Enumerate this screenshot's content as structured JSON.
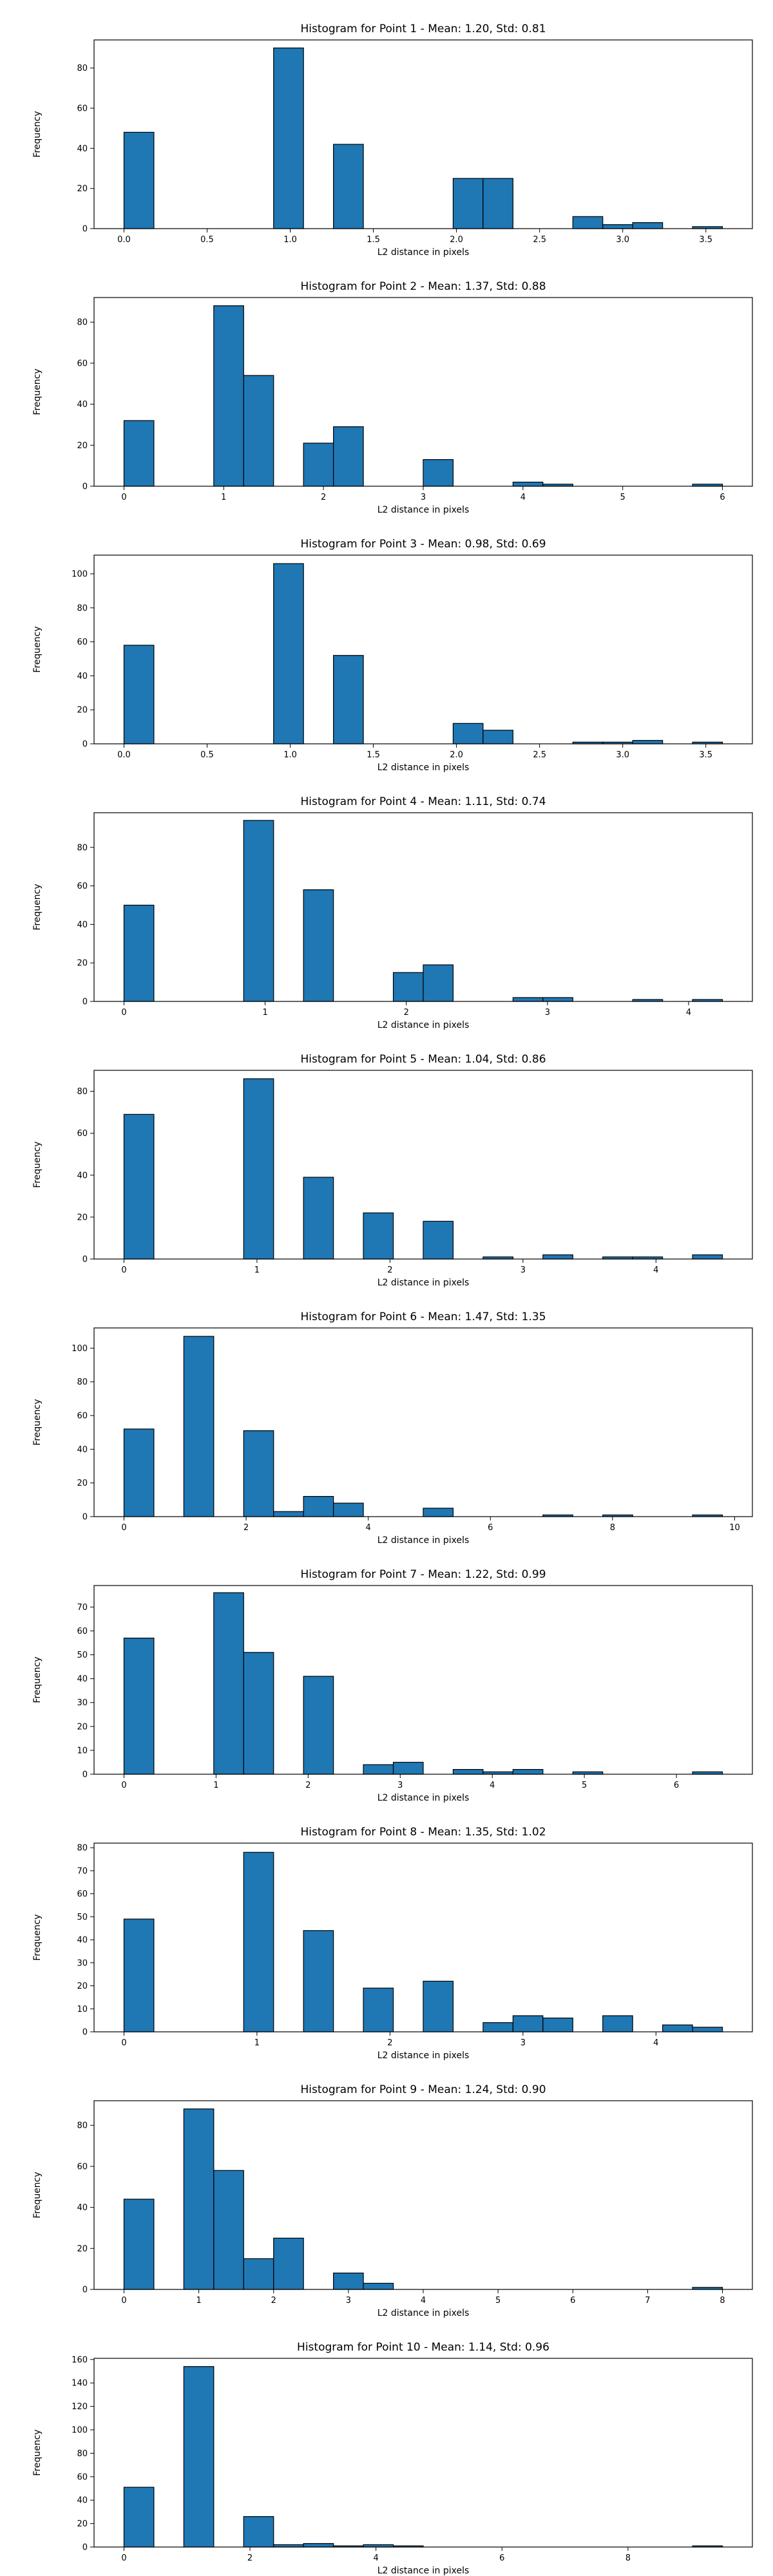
{
  "chart_data": [
    {
      "type": "bar",
      "title": "Histogram for Point 1 - Mean: 1.20, Std: 0.81",
      "xlabel": "L2 distance in pixels",
      "ylabel": "Frequency",
      "xlim": [
        -0.18,
        3.78
      ],
      "ylim": [
        0,
        94
      ],
      "xticks": [
        0.0,
        0.5,
        1.0,
        1.5,
        2.0,
        2.5,
        3.0,
        3.5
      ],
      "xtick_labels": [
        "0.0",
        "0.5",
        "1.0",
        "1.5",
        "2.0",
        "2.5",
        "3.0",
        "3.5"
      ],
      "yticks": [
        0,
        20,
        40,
        60,
        80
      ],
      "bin_edges": [
        0.0,
        0.18,
        0.36,
        0.54,
        0.72,
        0.9,
        1.08,
        1.26,
        1.44,
        1.62,
        1.8,
        1.98,
        2.16,
        2.34,
        2.52,
        2.7,
        2.88,
        3.06,
        3.24,
        3.42,
        3.6
      ],
      "values": [
        48,
        0,
        0,
        0,
        0,
        90,
        0,
        42,
        0,
        0,
        0,
        25,
        25,
        0,
        0,
        6,
        2,
        3,
        0,
        1
      ]
    },
    {
      "type": "bar",
      "title": "Histogram for Point 2 - Mean: 1.37, Std: 0.88",
      "xlabel": "L2 distance in pixels",
      "ylabel": "Frequency",
      "xlim": [
        -0.3,
        6.3
      ],
      "ylim": [
        0,
        92
      ],
      "xticks": [
        0,
        1,
        2,
        3,
        4,
        5,
        6
      ],
      "xtick_labels": [
        "0",
        "1",
        "2",
        "3",
        "4",
        "5",
        "6"
      ],
      "yticks": [
        0,
        20,
        40,
        60,
        80
      ],
      "bin_edges": [
        0.0,
        0.3,
        0.6,
        0.9,
        1.2,
        1.5,
        1.8,
        2.1,
        2.4,
        2.7,
        3.0,
        3.3,
        3.6,
        3.9,
        4.2,
        4.5,
        4.8,
        5.1,
        5.4,
        5.7,
        6.0
      ],
      "values": [
        32,
        0,
        0,
        88,
        54,
        0,
        21,
        29,
        0,
        0,
        13,
        0,
        0,
        2,
        1,
        0,
        0,
        0,
        0,
        1
      ]
    },
    {
      "type": "bar",
      "title": "Histogram for Point 3 - Mean: 0.98, Std: 0.69",
      "xlabel": "L2 distance in pixels",
      "ylabel": "Frequency",
      "xlim": [
        -0.18,
        3.78
      ],
      "ylim": [
        0,
        111
      ],
      "xticks": [
        0.0,
        0.5,
        1.0,
        1.5,
        2.0,
        2.5,
        3.0,
        3.5
      ],
      "xtick_labels": [
        "0.0",
        "0.5",
        "1.0",
        "1.5",
        "2.0",
        "2.5",
        "3.0",
        "3.5"
      ],
      "yticks": [
        0,
        20,
        40,
        60,
        80,
        100
      ],
      "bin_edges": [
        0.0,
        0.18,
        0.36,
        0.54,
        0.72,
        0.9,
        1.08,
        1.26,
        1.44,
        1.62,
        1.8,
        1.98,
        2.16,
        2.34,
        2.52,
        2.7,
        2.88,
        3.06,
        3.24,
        3.42,
        3.6
      ],
      "values": [
        58,
        0,
        0,
        0,
        0,
        106,
        0,
        52,
        0,
        0,
        0,
        12,
        8,
        0,
        0,
        1,
        1,
        2,
        0,
        1
      ]
    },
    {
      "type": "bar",
      "title": "Histogram for Point 4 - Mean: 1.11, Std: 0.74",
      "xlabel": "L2 distance in pixels",
      "ylabel": "Frequency",
      "xlim": [
        -0.212,
        4.452
      ],
      "ylim": [
        0,
        98
      ],
      "xticks": [
        0,
        1,
        2,
        3,
        4
      ],
      "xtick_labels": [
        "0",
        "1",
        "2",
        "3",
        "4"
      ],
      "yticks": [
        0,
        20,
        40,
        60,
        80
      ],
      "bin_edges": [
        0.0,
        0.212,
        0.424,
        0.636,
        0.848,
        1.06,
        1.272,
        1.484,
        1.696,
        1.908,
        2.12,
        2.332,
        2.544,
        2.756,
        2.968,
        3.18,
        3.392,
        3.604,
        3.816,
        4.028,
        4.24
      ],
      "values": [
        50,
        0,
        0,
        0,
        94,
        0,
        58,
        0,
        0,
        15,
        19,
        0,
        0,
        2,
        2,
        0,
        0,
        1,
        0,
        1
      ]
    },
    {
      "type": "bar",
      "title": "Histogram for Point 5 - Mean: 1.04, Std: 0.86",
      "xlabel": "L2 distance in pixels",
      "ylabel": "Frequency",
      "xlim": [
        -0.225,
        4.725
      ],
      "ylim": [
        0,
        90
      ],
      "xticks": [
        0,
        1,
        2,
        3,
        4
      ],
      "xtick_labels": [
        "0",
        "1",
        "2",
        "3",
        "4"
      ],
      "yticks": [
        0,
        20,
        40,
        60,
        80
      ],
      "bin_edges": [
        0.0,
        0.225,
        0.45,
        0.675,
        0.9,
        1.125,
        1.35,
        1.575,
        1.8,
        2.025,
        2.25,
        2.475,
        2.7,
        2.925,
        3.15,
        3.375,
        3.6,
        3.825,
        4.05,
        4.275,
        4.5
      ],
      "values": [
        69,
        0,
        0,
        0,
        86,
        0,
        39,
        0,
        22,
        0,
        18,
        0,
        1,
        0,
        2,
        0,
        1,
        1,
        0,
        2
      ]
    },
    {
      "type": "bar",
      "title": "Histogram for Point 6 - Mean: 1.47, Std: 1.35",
      "xlabel": "L2 distance in pixels",
      "ylabel": "Frequency",
      "xlim": [
        -0.49,
        10.29
      ],
      "ylim": [
        0,
        112
      ],
      "xticks": [
        0,
        2,
        4,
        6,
        8,
        10
      ],
      "xtick_labels": [
        "0",
        "2",
        "4",
        "6",
        "8",
        "10"
      ],
      "yticks": [
        0,
        20,
        40,
        60,
        80,
        100
      ],
      "bin_edges": [
        0.0,
        0.49,
        0.98,
        1.47,
        1.96,
        2.45,
        2.94,
        3.43,
        3.92,
        4.41,
        4.9,
        5.39,
        5.88,
        6.37,
        6.86,
        7.35,
        7.84,
        8.33,
        8.82,
        9.31,
        9.8
      ],
      "values": [
        52,
        0,
        107,
        0,
        51,
        3,
        12,
        8,
        0,
        0,
        5,
        0,
        0,
        0,
        1,
        0,
        1,
        0,
        0,
        1
      ]
    },
    {
      "type": "bar",
      "title": "Histogram for Point 7 - Mean: 1.22, Std: 0.99",
      "xlabel": "L2 distance in pixels",
      "ylabel": "Frequency",
      "xlim": [
        -0.325,
        6.825
      ],
      "ylim": [
        0,
        79
      ],
      "xticks": [
        0,
        1,
        2,
        3,
        4,
        5,
        6
      ],
      "xtick_labels": [
        "0",
        "1",
        "2",
        "3",
        "4",
        "5",
        "6"
      ],
      "yticks": [
        0,
        10,
        20,
        30,
        40,
        50,
        60,
        70
      ],
      "bin_edges": [
        0.0,
        0.325,
        0.65,
        0.975,
        1.3,
        1.625,
        1.95,
        2.275,
        2.6,
        2.925,
        3.25,
        3.575,
        3.9,
        4.225,
        4.55,
        4.875,
        5.2,
        5.525,
        5.85,
        6.175,
        6.5
      ],
      "values": [
        57,
        0,
        0,
        76,
        51,
        0,
        41,
        0,
        4,
        5,
        0,
        2,
        1,
        2,
        0,
        1,
        0,
        0,
        0,
        1
      ]
    },
    {
      "type": "bar",
      "title": "Histogram for Point 8 - Mean: 1.35, Std: 1.02",
      "xlabel": "L2 distance in pixels",
      "ylabel": "Frequency",
      "xlim": [
        -0.225,
        4.725
      ],
      "ylim": [
        0,
        82
      ],
      "xticks": [
        0,
        1,
        2,
        3,
        4
      ],
      "xtick_labels": [
        "0",
        "1",
        "2",
        "3",
        "4"
      ],
      "yticks": [
        0,
        10,
        20,
        30,
        40,
        50,
        60,
        70,
        80
      ],
      "bin_edges": [
        0.0,
        0.225,
        0.45,
        0.675,
        0.9,
        1.125,
        1.35,
        1.575,
        1.8,
        2.025,
        2.25,
        2.475,
        2.7,
        2.925,
        3.15,
        3.375,
        3.6,
        3.825,
        4.05,
        4.275,
        4.5
      ],
      "values": [
        49,
        0,
        0,
        0,
        78,
        0,
        44,
        0,
        19,
        0,
        22,
        0,
        4,
        7,
        6,
        0,
        7,
        0,
        3,
        2
      ]
    },
    {
      "type": "bar",
      "title": "Histogram for Point 9 - Mean: 1.24, Std: 0.90",
      "xlabel": "L2 distance in pixels",
      "ylabel": "Frequency",
      "xlim": [
        -0.4,
        8.4
      ],
      "ylim": [
        0,
        92
      ],
      "xticks": [
        0,
        1,
        2,
        3,
        4,
        5,
        6,
        7,
        8
      ],
      "xtick_labels": [
        "0",
        "1",
        "2",
        "3",
        "4",
        "5",
        "6",
        "7",
        "8"
      ],
      "yticks": [
        0,
        20,
        40,
        60,
        80
      ],
      "bin_edges": [
        0.0,
        0.4,
        0.8,
        1.2,
        1.6,
        2.0,
        2.4,
        2.8,
        3.2,
        3.6,
        4.0,
        4.4,
        4.8,
        5.2,
        5.6,
        6.0,
        6.4,
        6.8,
        7.2,
        7.6,
        8.0
      ],
      "values": [
        44,
        0,
        88,
        58,
        15,
        25,
        0,
        8,
        3,
        0,
        0,
        0,
        0,
        0,
        0,
        0,
        0,
        0,
        0,
        1
      ]
    },
    {
      "type": "bar",
      "title": "Histogram for Point 10 - Mean: 1.14, Std: 0.96",
      "xlabel": "L2 distance in pixels",
      "ylabel": "Frequency",
      "xlim": [
        -0.475,
        9.975
      ],
      "ylim": [
        0,
        161
      ],
      "xticks": [
        0,
        2,
        4,
        6,
        8
      ],
      "xtick_labels": [
        "0",
        "2",
        "4",
        "6",
        "8"
      ],
      "yticks": [
        0,
        20,
        40,
        60,
        80,
        100,
        120,
        140,
        160
      ],
      "bin_edges": [
        0.0,
        0.475,
        0.95,
        1.425,
        1.9,
        2.375,
        2.85,
        3.325,
        3.8,
        4.275,
        4.75,
        5.225,
        5.7,
        6.175,
        6.65,
        7.125,
        7.6,
        8.075,
        8.55,
        9.025,
        9.5
      ],
      "values": [
        51,
        0,
        154,
        0,
        26,
        2,
        3,
        1,
        2,
        1,
        0,
        0,
        0,
        0,
        0,
        0,
        0,
        0,
        0,
        1
      ]
    }
  ]
}
